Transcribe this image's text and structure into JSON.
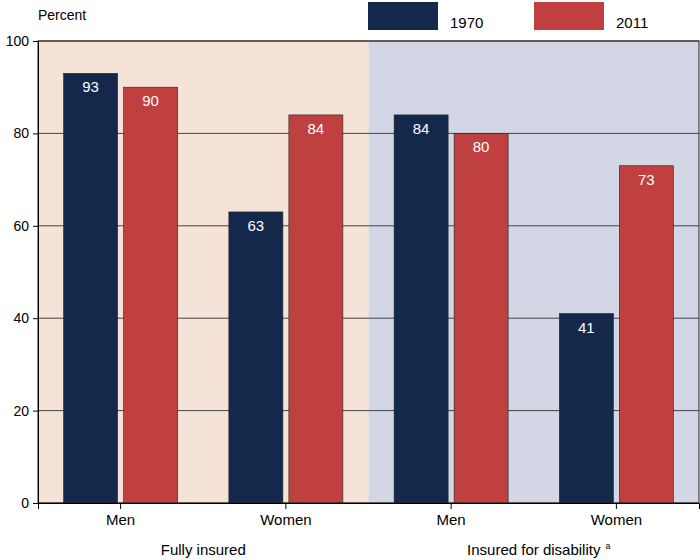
{
  "chart_data": {
    "type": "bar",
    "y_label": "Percent",
    "categories": [
      "Men",
      "Women",
      "Men",
      "Women"
    ],
    "groups": [
      {
        "label": "Fully insured"
      },
      {
        "label": "Insured for disability",
        "footnote": "a"
      }
    ],
    "series": [
      {
        "name": "1970",
        "color": "#14284b",
        "values": [
          93,
          63,
          84,
          41
        ]
      },
      {
        "name": "2011",
        "color": "#c0403f",
        "values": [
          90,
          84,
          80,
          73
        ]
      }
    ],
    "ylim": [
      0,
      100
    ],
    "yticks": [
      0,
      20,
      40,
      60,
      80,
      100
    ],
    "grid": true,
    "legend": "top-right",
    "data_labels": true
  }
}
